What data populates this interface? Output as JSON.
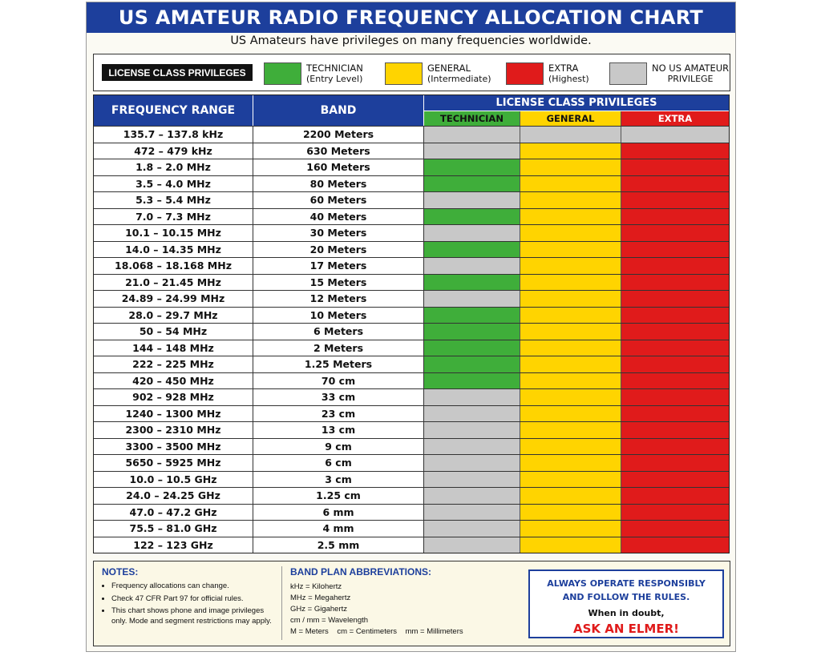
{
  "title": "US AMATEUR RADIO FREQUENCY ALLOCATION CHART",
  "subtitle": "US Amateurs have privileges on many frequencies worldwide.",
  "colors": {
    "technician": "#3fae3a",
    "general": "#ffd400",
    "extra": "#e01b1b",
    "none": "#c8c8c8",
    "header": "#1d3f9c"
  },
  "legend": {
    "title": "LICENSE CLASS PRIVILEGES",
    "items": [
      {
        "key": "technician",
        "line1": "TECHNICIAN",
        "line2": "(Entry Level)"
      },
      {
        "key": "general",
        "line1": "GENERAL",
        "line2": "(Intermediate)"
      },
      {
        "key": "extra",
        "line1": "EXTRA",
        "line2": "(Highest)"
      },
      {
        "key": "none",
        "line1": "NO US AMATEUR",
        "line2": "PRIVILEGE"
      }
    ]
  },
  "table": {
    "col_frequency": "FREQUENCY RANGE",
    "col_band": "BAND",
    "col_privileges": "LICENSE CLASS PRIVILEGES",
    "sub_technician": "TECHNICIAN",
    "sub_general": "GENERAL",
    "sub_extra": "EXTRA",
    "rows": [
      {
        "freq": "135.7 – 137.8 kHz",
        "band": "2200 Meters",
        "tech": "none",
        "gen": "none",
        "ext": "none"
      },
      {
        "freq": "472 – 479 kHz",
        "band": "630 Meters",
        "tech": "none",
        "gen": "general",
        "ext": "extra"
      },
      {
        "freq": "1.8 – 2.0 MHz",
        "band": "160 Meters",
        "tech": "technician",
        "gen": "general",
        "ext": "extra"
      },
      {
        "freq": "3.5 – 4.0 MHz",
        "band": "80 Meters",
        "tech": "technician",
        "gen": "general",
        "ext": "extra"
      },
      {
        "freq": "5.3 – 5.4 MHz",
        "band": "60 Meters",
        "tech": "none",
        "gen": "general",
        "ext": "extra"
      },
      {
        "freq": "7.0 – 7.3 MHz",
        "band": "40 Meters",
        "tech": "technician",
        "gen": "general",
        "ext": "extra"
      },
      {
        "freq": "10.1 – 10.15 MHz",
        "band": "30 Meters",
        "tech": "none",
        "gen": "general",
        "ext": "extra"
      },
      {
        "freq": "14.0 – 14.35 MHz",
        "band": "20 Meters",
        "tech": "technician",
        "gen": "general",
        "ext": "extra"
      },
      {
        "freq": "18.068 – 18.168 MHz",
        "band": "17 Meters",
        "tech": "none",
        "gen": "general",
        "ext": "extra"
      },
      {
        "freq": "21.0 – 21.45 MHz",
        "band": "15 Meters",
        "tech": "technician",
        "gen": "general",
        "ext": "extra"
      },
      {
        "freq": "24.89 – 24.99 MHz",
        "band": "12 Meters",
        "tech": "none",
        "gen": "general",
        "ext": "extra"
      },
      {
        "freq": "28.0 – 29.7 MHz",
        "band": "10 Meters",
        "tech": "technician",
        "gen": "general",
        "ext": "extra"
      },
      {
        "freq": "50 – 54 MHz",
        "band": "6 Meters",
        "tech": "technician",
        "gen": "general",
        "ext": "extra"
      },
      {
        "freq": "144 – 148 MHz",
        "band": "2 Meters",
        "tech": "technician",
        "gen": "general",
        "ext": "extra"
      },
      {
        "freq": "222 – 225 MHz",
        "band": "1.25 Meters",
        "tech": "technician",
        "gen": "general",
        "ext": "extra"
      },
      {
        "freq": "420 – 450 MHz",
        "band": "70 cm",
        "tech": "technician",
        "gen": "general",
        "ext": "extra"
      },
      {
        "freq": "902 – 928 MHz",
        "band": "33 cm",
        "tech": "none",
        "gen": "general",
        "ext": "extra"
      },
      {
        "freq": "1240 – 1300 MHz",
        "band": "23 cm",
        "tech": "none",
        "gen": "general",
        "ext": "extra"
      },
      {
        "freq": "2300 – 2310 MHz",
        "band": "13 cm",
        "tech": "none",
        "gen": "general",
        "ext": "extra"
      },
      {
        "freq": "3300 – 3500 MHz",
        "band": "9 cm",
        "tech": "none",
        "gen": "general",
        "ext": "extra"
      },
      {
        "freq": "5650 – 5925 MHz",
        "band": "6 cm",
        "tech": "none",
        "gen": "general",
        "ext": "extra"
      },
      {
        "freq": "10.0 – 10.5 GHz",
        "band": "3 cm",
        "tech": "none",
        "gen": "general",
        "ext": "extra"
      },
      {
        "freq": "24.0 – 24.25 GHz",
        "band": "1.25 cm",
        "tech": "none",
        "gen": "general",
        "ext": "extra"
      },
      {
        "freq": "47.0 – 47.2 GHz",
        "band": "6 mm",
        "tech": "none",
        "gen": "general",
        "ext": "extra"
      },
      {
        "freq": "75.5 – 81.0 GHz",
        "band": "4 mm",
        "tech": "none",
        "gen": "general",
        "ext": "extra"
      },
      {
        "freq": "122 – 123 GHz",
        "band": "2.5 mm",
        "tech": "none",
        "gen": "general",
        "ext": "extra"
      }
    ]
  },
  "notes": {
    "title": "NOTES:",
    "items": [
      "Frequency allocations can change.",
      "Check 47 CFR Part 97 for official rules.",
      "This chart shows phone and image privileges only.  Mode and segment restrictions may apply."
    ]
  },
  "abbreviations": {
    "title": "BAND PLAN ABBREVIATIONS:",
    "items": [
      "kHz = Kilohertz",
      "MHz = Megahertz",
      "GHz = Gigahertz",
      "cm / mm = Wavelength",
      "M = Meters    cm = Centimeters    mm = Millimeters"
    ]
  },
  "advice": {
    "line1": "ALWAYS OPERATE RESPONSIBLY",
    "line2": "AND FOLLOW THE RULES.",
    "line3": "When in doubt,",
    "line4": "ASK AN ELMER!"
  }
}
